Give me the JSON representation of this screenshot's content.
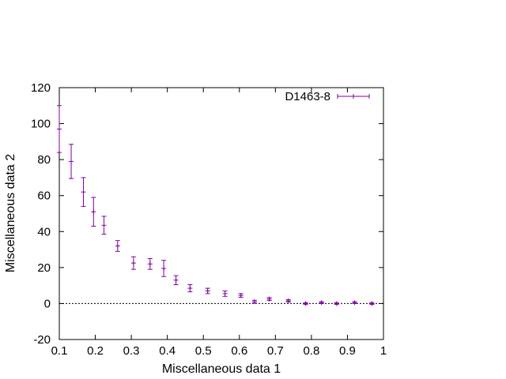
{
  "chart_data": {
    "type": "scatter",
    "title": "",
    "xlabel": "Miscellaneous data 1",
    "ylabel": "Miscellaneous data 2",
    "xlim": [
      0.1,
      1
    ],
    "ylim": [
      -20,
      120
    ],
    "xticks": [
      "0.1",
      "0.2",
      "0.3",
      "0.4",
      "0.5",
      "0.6",
      "0.7",
      "0.8",
      "0.9",
      "1"
    ],
    "xtick_values": [
      0.1,
      0.2,
      0.3,
      0.4,
      0.5,
      0.6,
      0.7,
      0.8,
      0.9,
      1
    ],
    "yticks": [
      "-20",
      "0",
      "20",
      "40",
      "60",
      "80",
      "100",
      "120"
    ],
    "ytick_values": [
      -20,
      0,
      20,
      40,
      60,
      80,
      100,
      120
    ],
    "grid": false,
    "zero_line": true,
    "legend_position": "top-right",
    "series": [
      {
        "name": "D1463-8",
        "color": "#8000a0",
        "points": [
          {
            "x": 0.1,
            "y": 97.0,
            "err": 13.0
          },
          {
            "x": 0.133,
            "y": 79.0,
            "err": 9.5
          },
          {
            "x": 0.167,
            "y": 62.0,
            "err": 8.0
          },
          {
            "x": 0.195,
            "y": 51.0,
            "err": 8.0
          },
          {
            "x": 0.224,
            "y": 43.5,
            "err": 5.0
          },
          {
            "x": 0.262,
            "y": 32.0,
            "err": 3.0
          },
          {
            "x": 0.306,
            "y": 22.5,
            "err": 3.5
          },
          {
            "x": 0.352,
            "y": 22.0,
            "err": 3.0
          },
          {
            "x": 0.39,
            "y": 19.5,
            "err": 4.5
          },
          {
            "x": 0.424,
            "y": 13.0,
            "err": 2.5
          },
          {
            "x": 0.463,
            "y": 8.5,
            "err": 2.0
          },
          {
            "x": 0.512,
            "y": 7.0,
            "err": 1.5
          },
          {
            "x": 0.56,
            "y": 5.5,
            "err": 1.5
          },
          {
            "x": 0.604,
            "y": 4.5,
            "err": 1.0
          },
          {
            "x": 0.642,
            "y": 1.0,
            "err": 0.8
          },
          {
            "x": 0.683,
            "y": 2.5,
            "err": 0.8
          },
          {
            "x": 0.736,
            "y": 1.5,
            "err": 0.6
          },
          {
            "x": 0.784,
            "y": 0.0,
            "err": 0.5
          },
          {
            "x": 0.828,
            "y": 0.5,
            "err": 0.5
          },
          {
            "x": 0.87,
            "y": 0.0,
            "err": 0.5
          },
          {
            "x": 0.92,
            "y": 0.5,
            "err": 0.5
          },
          {
            "x": 0.968,
            "y": 0.0,
            "err": 0.5
          }
        ]
      }
    ]
  }
}
